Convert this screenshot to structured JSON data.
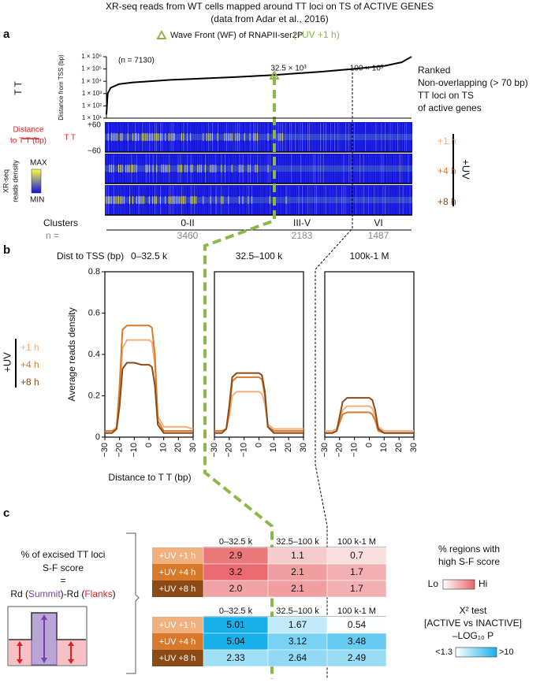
{
  "title": "XR-seq reads from WT cells mapped around TT loci on TS of ACTIVE GENES",
  "subtitle": "(data from Adar et al., 2016)",
  "wave_front": {
    "label": "Wave Front (WF) of RNAPII-ser2P",
    "condition": "(+UV +1 h)"
  },
  "panel_a": {
    "letter": "a",
    "locus_label": "T T",
    "n_total": "(n = 7130)",
    "ranking_note": [
      "Ranked",
      "Non-overlapping (> 70 bp)",
      "TT loci on TS",
      "of active genes"
    ],
    "distance_label": [
      "Distance",
      "to T T (bp)"
    ],
    "distance_ticks": [
      "+60",
      "T T",
      "−60"
    ],
    "density_label": [
      "XR-seq",
      "reads density"
    ],
    "scale": [
      "MAX",
      "MIN"
    ],
    "timepoints": [
      "+1 h",
      "+4 h",
      "+8 h"
    ],
    "treatment": "+UV",
    "clusters_label": "Clusters",
    "clusters": [
      "0-II",
      "III-V",
      "VI"
    ],
    "n_label": "n =",
    "cluster_sizes": [
      3460,
      2183,
      1487
    ]
  },
  "panel_b": {
    "letter": "b",
    "dist_label": "Dist to TSS (bp)"
  },
  "chart_data": [
    {
      "type": "line",
      "y_label": "Distance from TSS (bp)",
      "log_scale": true,
      "color": "#000000",
      "x": [
        1,
        30,
        100,
        300,
        600,
        1500,
        3000,
        3920,
        5000,
        5750,
        6500,
        6900,
        7130
      ],
      "values": [
        20,
        1000,
        3000,
        6000,
        8000,
        13000,
        22000,
        32500,
        60000,
        100000,
        180000,
        350000,
        1000000
      ],
      "xlim": [
        1,
        7130
      ],
      "ylim": [
        10,
        1000000
      ],
      "yticks": [
        {
          "value": 10,
          "label": "1 × 10¹"
        },
        {
          "value": 100,
          "label": "1 × 10²"
        },
        {
          "value": 1000,
          "label": "1 × 10³"
        },
        {
          "value": 10000,
          "label": "1 × 10⁴"
        },
        {
          "value": 100000,
          "label": "1 × 10⁵"
        },
        {
          "value": 1000000,
          "label": "1 × 10⁶"
        }
      ],
      "annotations": [
        "32.5 × 10³",
        "100 × 10³"
      ]
    },
    {
      "type": "line",
      "title": "0–32.5 k",
      "y_label": "Average reads density",
      "x_label": "Distance to T T (bp)",
      "legend_title": "+UV",
      "x": [
        -30,
        -25,
        -22,
        -20,
        -18,
        -15,
        -10,
        -5,
        0,
        2,
        4,
        6,
        10,
        15,
        20,
        25,
        30
      ],
      "series": [
        {
          "name": "+1 h",
          "color": "#f2b07e",
          "values": [
            0.03,
            0.03,
            0.05,
            0.2,
            0.43,
            0.47,
            0.47,
            0.47,
            0.47,
            0.46,
            0.35,
            0.1,
            0.05,
            0.05,
            0.05,
            0.05,
            0.04
          ]
        },
        {
          "name": "+4 h",
          "color": "#d9792b",
          "values": [
            0.03,
            0.03,
            0.04,
            0.25,
            0.52,
            0.54,
            0.54,
            0.54,
            0.54,
            0.53,
            0.4,
            0.08,
            0.03,
            0.03,
            0.03,
            0.03,
            0.03
          ]
        },
        {
          "name": "+8 h",
          "color": "#8c4a16",
          "values": [
            0.02,
            0.02,
            0.04,
            0.15,
            0.33,
            0.36,
            0.36,
            0.35,
            0.35,
            0.34,
            0.25,
            0.06,
            0.02,
            0.02,
            0.02,
            0.02,
            0.02
          ]
        }
      ],
      "xlim": [
        -30,
        30
      ],
      "ylim": [
        0,
        0.8
      ],
      "xticks": [
        {
          "value": -30,
          "label": "−30"
        },
        {
          "value": -20,
          "label": "−20"
        },
        {
          "value": -10,
          "label": "−10"
        },
        0,
        10,
        20,
        30
      ],
      "yticks": [
        0,
        0.2,
        0.4,
        0.6,
        0.8
      ]
    },
    {
      "type": "line",
      "title": "32.5–100 k",
      "x": [
        -30,
        -25,
        -22,
        -20,
        -18,
        -15,
        -10,
        -5,
        0,
        2,
        4,
        6,
        10,
        15,
        20,
        25,
        30
      ],
      "series": [
        {
          "color": "#f2b07e",
          "values": [
            0.03,
            0.03,
            0.04,
            0.1,
            0.2,
            0.22,
            0.22,
            0.22,
            0.22,
            0.21,
            0.16,
            0.06,
            0.04,
            0.04,
            0.04,
            0.04,
            0.04
          ]
        },
        {
          "color": "#d9792b",
          "values": [
            0.03,
            0.03,
            0.04,
            0.13,
            0.27,
            0.29,
            0.29,
            0.29,
            0.29,
            0.28,
            0.2,
            0.05,
            0.03,
            0.03,
            0.03,
            0.03,
            0.03
          ]
        },
        {
          "color": "#8c4a16",
          "values": [
            0.02,
            0.02,
            0.04,
            0.15,
            0.29,
            0.31,
            0.31,
            0.31,
            0.31,
            0.3,
            0.22,
            0.05,
            0.02,
            0.02,
            0.02,
            0.02,
            0.02
          ]
        }
      ],
      "xlim": [
        -30,
        30
      ],
      "ylim": [
        0,
        0.8
      ],
      "xticks": [
        {
          "value": -30,
          "label": "−30"
        },
        {
          "value": -20,
          "label": "−20"
        },
        {
          "value": -10,
          "label": "−10"
        },
        0,
        10,
        20,
        30
      ]
    },
    {
      "type": "line",
      "title": "100k-1 M",
      "x": [
        -30,
        -25,
        -22,
        -20,
        -18,
        -15,
        -10,
        -5,
        0,
        2,
        4,
        6,
        10,
        15,
        20,
        25,
        30
      ],
      "series": [
        {
          "color": "#f2b07e",
          "values": [
            0.03,
            0.03,
            0.04,
            0.08,
            0.13,
            0.15,
            0.15,
            0.15,
            0.15,
            0.14,
            0.1,
            0.05,
            0.03,
            0.03,
            0.03,
            0.03,
            0.03
          ]
        },
        {
          "color": "#d9792b",
          "values": [
            0.02,
            0.02,
            0.03,
            0.07,
            0.11,
            0.12,
            0.12,
            0.12,
            0.12,
            0.11,
            0.08,
            0.03,
            0.02,
            0.02,
            0.02,
            0.02,
            0.02
          ]
        },
        {
          "color": "#8c4a16",
          "values": [
            0.02,
            0.02,
            0.03,
            0.1,
            0.17,
            0.19,
            0.19,
            0.19,
            0.19,
            0.18,
            0.13,
            0.04,
            0.02,
            0.02,
            0.02,
            0.02,
            0.02
          ]
        }
      ],
      "xlim": [
        -30,
        30
      ],
      "ylim": [
        0,
        0.8
      ],
      "xticks": [
        {
          "value": -30,
          "label": "−30"
        },
        {
          "value": -20,
          "label": "−20"
        },
        {
          "value": -10,
          "label": "−10"
        },
        0,
        10,
        20,
        30
      ]
    }
  ],
  "panel_c": {
    "letter": "c",
    "score_label": [
      "% of excised TT loci",
      "S-F score",
      "="
    ],
    "formula": [
      "Rd (",
      "Summit",
      ")-Rd (",
      "Flanks",
      ")"
    ],
    "sf_table": {
      "columns": [
        "0–32.5 k",
        "32.5–100 k",
        "100 k-1 M"
      ],
      "rows": [
        [
          "+UV +1 h",
          "2.9",
          "1.1",
          "0.7"
        ],
        [
          "+UV +4 h",
          "3.2",
          "2.1",
          "1.7"
        ],
        [
          "+UV +8 h",
          "2.0",
          "2.1",
          "1.7"
        ]
      ]
    },
    "sf_legend": {
      "title": [
        "% regions with",
        "high S-F score"
      ],
      "low": "Lo",
      "high": "Hi"
    },
    "chi_table": {
      "columns": [
        "0–32.5 k",
        "32.5–100 k",
        "100 k-1 M"
      ],
      "rows": [
        [
          "+UV +1 h",
          "5.01",
          "1.67",
          "0.54"
        ],
        [
          "+UV +4 h",
          "5.04",
          "3.12",
          "3.48"
        ],
        [
          "+UV +8 h",
          "2.33",
          "2.64",
          "2.49"
        ]
      ]
    },
    "chi_legend": {
      "title": [
        "X² test",
        "[ACTIVE vs INACTIVE]",
        "–LOG₁₀ P"
      ],
      "low": "<1.3",
      "high": ">10"
    }
  }
}
